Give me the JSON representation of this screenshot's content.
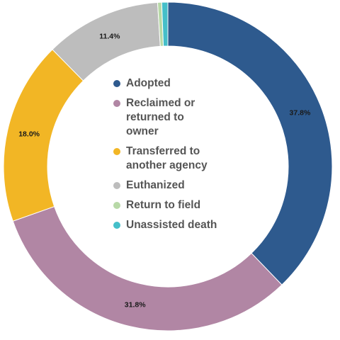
{
  "chart_data": {
    "type": "pie",
    "variant": "donut",
    "categories": [
      "Adopted",
      "Reclaimed or\nreturned to\nowner",
      "Transferred to\nanother agency",
      "Euthanized",
      "Return to field",
      "Unassisted death"
    ],
    "values": [
      37.8,
      31.8,
      18.0,
      11.4,
      0.4,
      0.6
    ],
    "labels": [
      "37.8%",
      "31.8%",
      "18.0%",
      "11.4%",
      "",
      ""
    ],
    "colors": [
      "#2e5a8e",
      "#b186a4",
      "#f2b625",
      "#bdbdbd",
      "#b8d9a7",
      "#45bfc9"
    ],
    "legend_position": "center",
    "title": ""
  }
}
